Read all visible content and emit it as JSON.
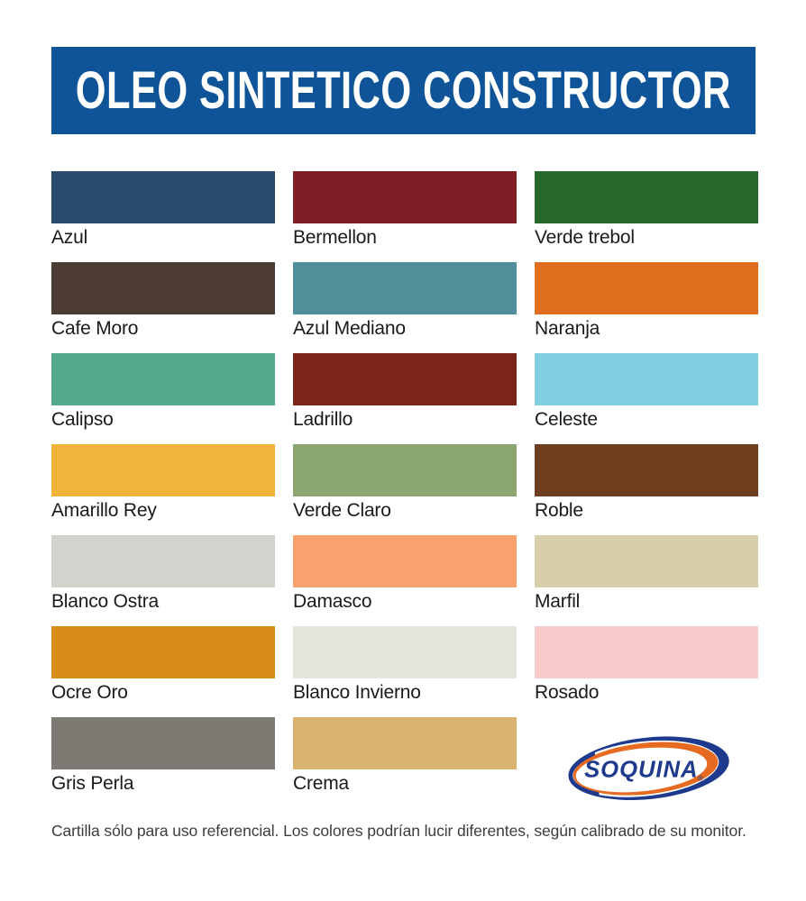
{
  "header": {
    "title": "OLEO SINTETICO CONSTRUCTOR",
    "background": "#0f5499",
    "text_color": "#ffffff"
  },
  "swatches": [
    {
      "name": "Azul",
      "hex": "#2b4b6e"
    },
    {
      "name": "Bermellon",
      "hex": "#7c1e23"
    },
    {
      "name": "Verde trebol",
      "hex": "#27682c"
    },
    {
      "name": "Cafe Moro",
      "hex": "#4c3c34"
    },
    {
      "name": "Azul Mediano",
      "hex": "#4f8f9a"
    },
    {
      "name": "Naranja",
      "hex": "#e0701f"
    },
    {
      "name": "Calipso",
      "hex": "#55aa8b"
    },
    {
      "name": "Ladrillo",
      "hex": "#7c2418"
    },
    {
      "name": "Celeste",
      "hex": "#82cfe1"
    },
    {
      "name": "Amarillo Rey",
      "hex": "#f2b33a"
    },
    {
      "name": "Verde Claro",
      "hex": "#8ca671"
    },
    {
      "name": "Roble",
      "hex": "#6e3e1f"
    },
    {
      "name": "Blanco Ostra",
      "hex": "#d3d2cd"
    },
    {
      "name": "Damasco",
      "hex": "#f8a36d"
    },
    {
      "name": "Marfil",
      "hex": "#d9ceaa"
    },
    {
      "name": "Ocre Oro",
      "hex": "#d98c17"
    },
    {
      "name": "Blanco Invierno",
      "hex": "#e6e5dc"
    },
    {
      "name": "Rosado",
      "hex": "#f9caca"
    },
    {
      "name": "Gris Perla",
      "hex": "#7c7a72"
    },
    {
      "name": "Crema",
      "hex": "#d9b370"
    }
  ],
  "logo": {
    "text": "SOQUINA",
    "registered": "®",
    "navy": "#1d3a8c",
    "orange": "#e66a1f"
  },
  "footer": {
    "disclaimer": "Cartilla sólo para uso referencial. Los colores podrían lucir diferentes, según calibrado de su monitor."
  }
}
